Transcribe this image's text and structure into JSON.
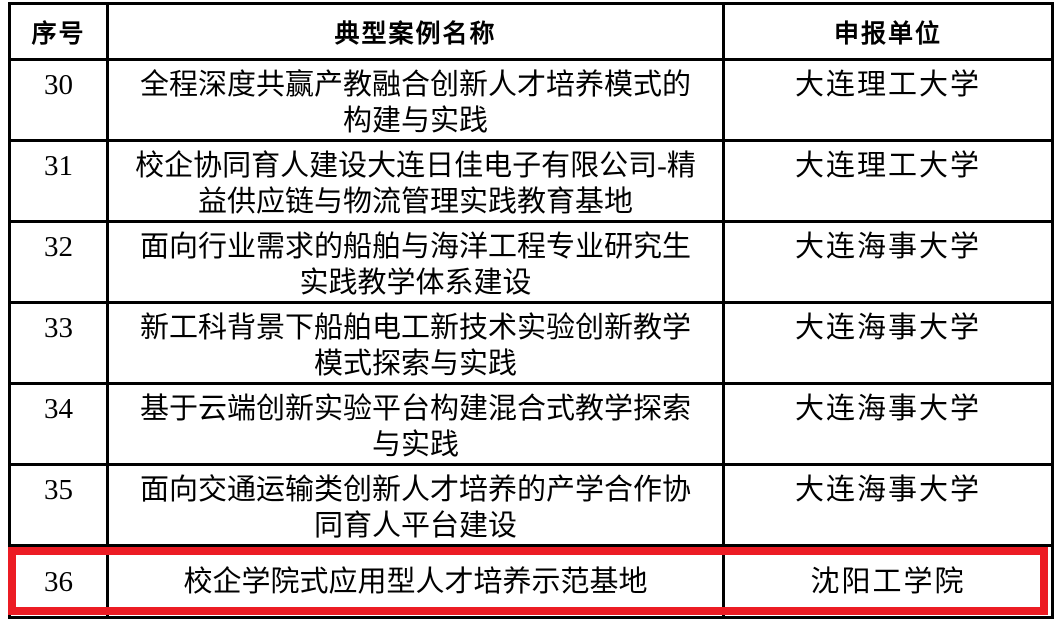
{
  "table": {
    "columns": [
      {
        "label": "序号"
      },
      {
        "label": "典型案例名称"
      },
      {
        "label": "申报单位"
      }
    ],
    "rows": [
      {
        "index": "30",
        "name": "全程深度共赢产教融合创新人才培养模式的\n构建与实践",
        "unit": "大连理工大学",
        "highlighted": false
      },
      {
        "index": "31",
        "name": "校企协同育人建设大连日佳电子有限公司-精\n益供应链与物流管理实践教育基地",
        "unit": "大连理工大学",
        "highlighted": false
      },
      {
        "index": "32",
        "name": "面向行业需求的船舶与海洋工程专业研究生\n实践教学体系建设",
        "unit": "大连海事大学",
        "highlighted": false
      },
      {
        "index": "33",
        "name": "新工科背景下船舶电工新技术实验创新教学\n模式探索与实践",
        "unit": "大连海事大学",
        "highlighted": false
      },
      {
        "index": "34",
        "name": "基于云端创新实验平台构建混合式教学探索\n与实践",
        "unit": "大连海事大学",
        "highlighted": false
      },
      {
        "index": "35",
        "name": "面向交通运输类创新人才培养的产学合作协\n同育人平台建设",
        "unit": "大连海事大学",
        "highlighted": false
      },
      {
        "index": "36",
        "name": "校企学院式应用型人才培养示范基地",
        "unit": "沈阳工学院",
        "highlighted": true
      }
    ],
    "highlight": {
      "color": "#ec1c24"
    },
    "border_color": "#000000"
  }
}
